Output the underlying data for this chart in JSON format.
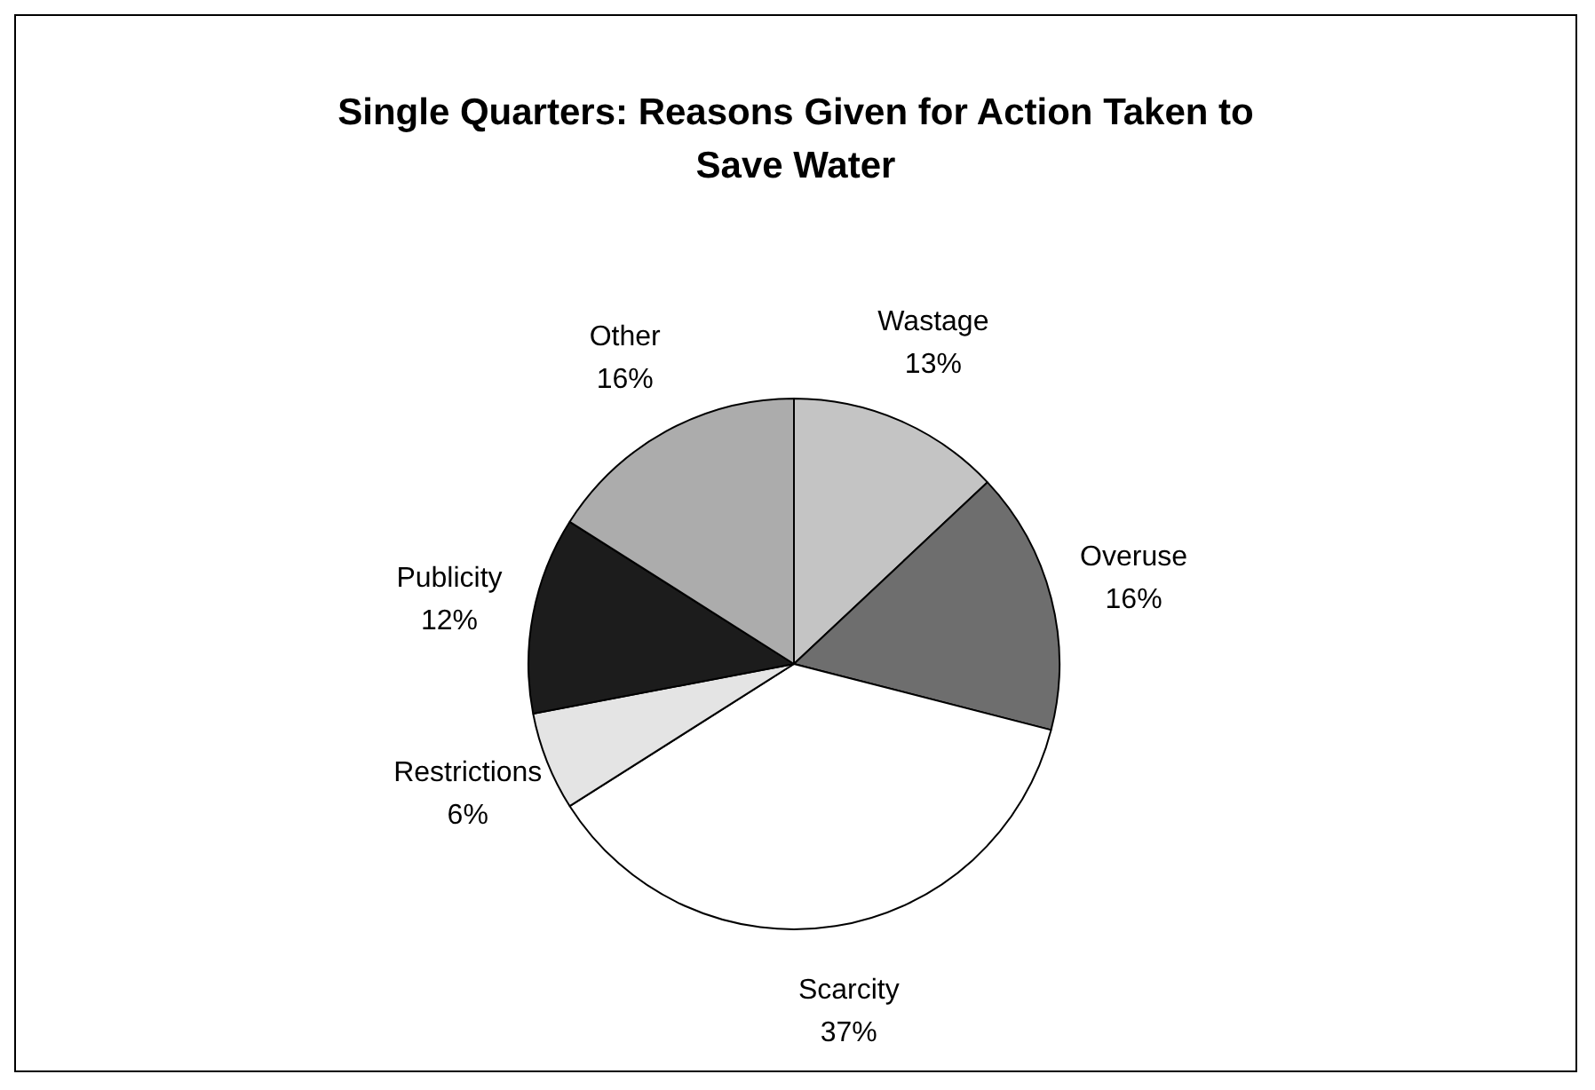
{
  "chart_data": {
    "type": "pie",
    "title": "Single Quarters: Reasons Given for Action Taken to Save Water",
    "categories": [
      "Wastage",
      "Overuse",
      "Scarcity",
      "Restrictions",
      "Publicity",
      "Other"
    ],
    "values": [
      13,
      16,
      37,
      6,
      12,
      16
    ],
    "value_labels": [
      "13%",
      "16%",
      "37%",
      "6%",
      "12%",
      "16%"
    ],
    "colors": [
      "#c4c4c4",
      "#6e6e6e",
      "#ffffff",
      "#e4e4e4",
      "#1c1c1c",
      "#acacac"
    ],
    "legend": false
  }
}
